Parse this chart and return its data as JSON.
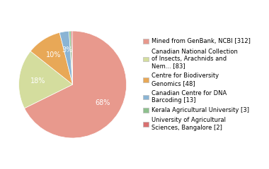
{
  "labels": [
    "Mined from GenBank, NCBI [312]",
    "Canadian National Collection\nof Insects, Arachnids and\nNem... [83]",
    "Centre for Biodiversity\nGenomics [48]",
    "Canadian Centre for DNA\nBarcoding [13]",
    "Kerala Agricultural University [3]",
    "University of Agricultural\nSciences, Bangalore [2]"
  ],
  "values": [
    312,
    83,
    48,
    13,
    3,
    2
  ],
  "colors": [
    "#e8998d",
    "#d4dd9e",
    "#e8a857",
    "#8ab4d4",
    "#8dc08d",
    "#d97070"
  ],
  "startangle": 90,
  "background_color": "#ffffff",
  "pct_fontsize": 7.0,
  "legend_fontsize": 6.0
}
